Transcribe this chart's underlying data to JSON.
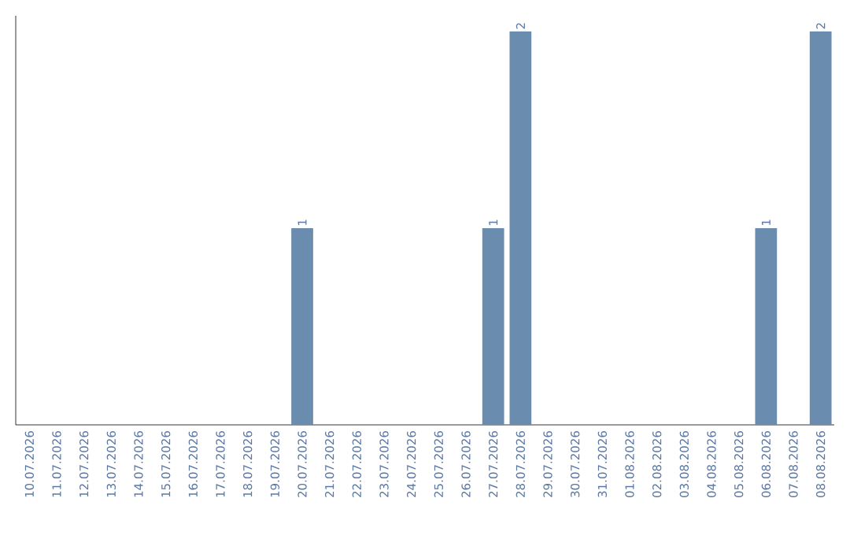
{
  "chart_data": {
    "type": "bar",
    "categories": [
      "10.07.2026",
      "11.07.2026",
      "12.07.2026",
      "13.07.2026",
      "14.07.2026",
      "15.07.2026",
      "16.07.2026",
      "17.07.2026",
      "18.07.2026",
      "19.07.2026",
      "20.07.2026",
      "21.07.2026",
      "22.07.2026",
      "23.07.2026",
      "24.07.2026",
      "25.07.2026",
      "26.07.2026",
      "27.07.2026",
      "28.07.2026",
      "29.07.2026",
      "30.07.2026",
      "31.07.2026",
      "01.08.2026",
      "02.08.2026",
      "03.08.2026",
      "04.08.2026",
      "05.08.2026",
      "06.08.2026",
      "07.08.2026",
      "08.08.2026"
    ],
    "values": [
      0,
      0,
      0,
      0,
      0,
      0,
      0,
      0,
      0,
      0,
      1,
      0,
      0,
      0,
      0,
      0,
      0,
      1,
      2,
      0,
      0,
      0,
      0,
      0,
      0,
      0,
      0,
      1,
      0,
      2
    ],
    "value_labels": [
      null,
      null,
      null,
      null,
      null,
      null,
      null,
      null,
      null,
      null,
      "1",
      null,
      null,
      null,
      null,
      null,
      null,
      "1",
      "2",
      null,
      null,
      null,
      null,
      null,
      null,
      null,
      null,
      "1",
      null,
      "2"
    ],
    "color": "#6a8caf"
  }
}
